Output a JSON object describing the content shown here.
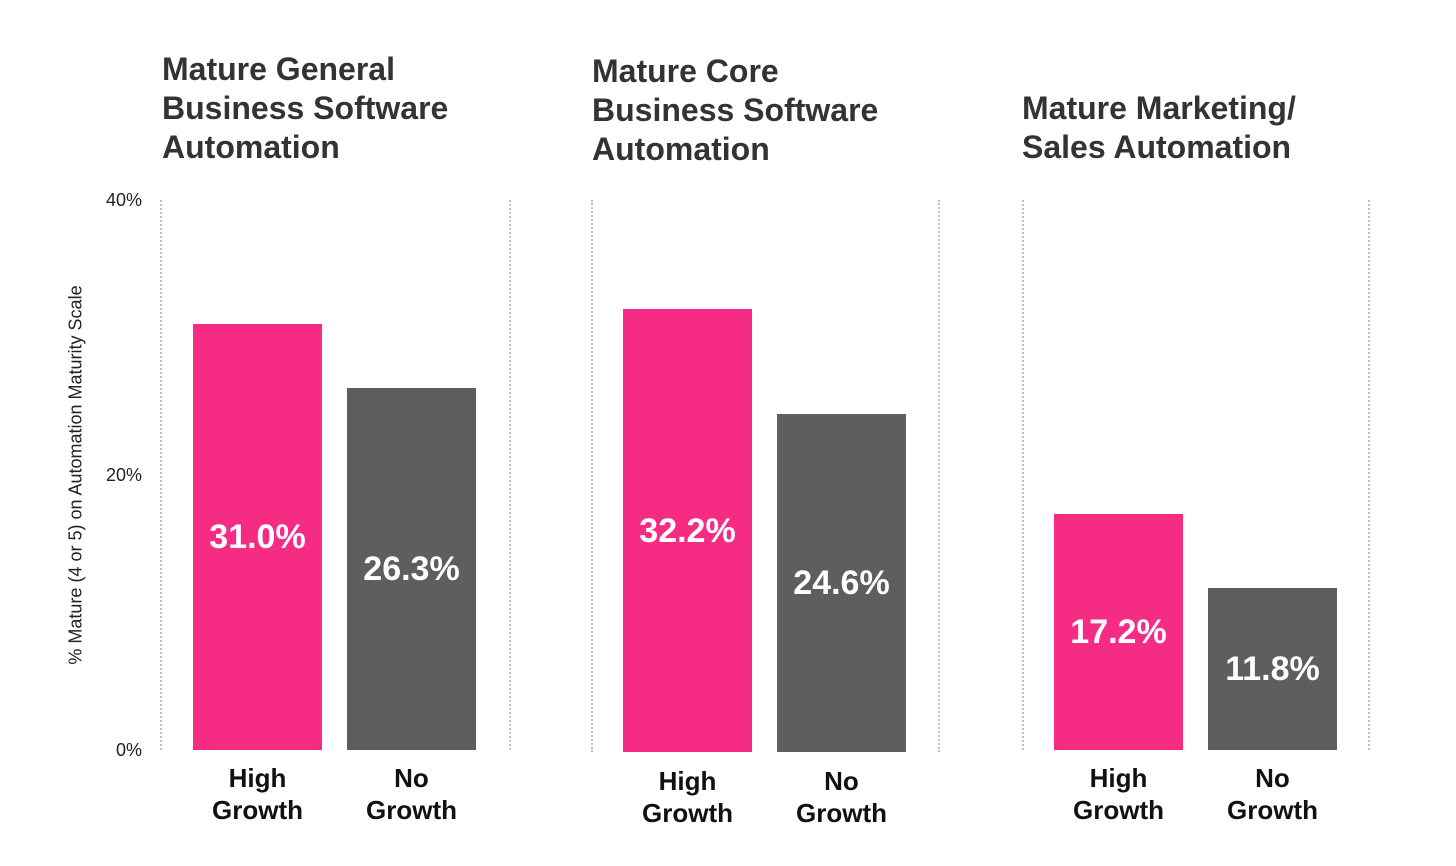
{
  "chart_data": {
    "type": "bar",
    "ylabel": "%  Mature (4 or 5) on Automation Maturity Scale",
    "ylim": [
      0,
      40
    ],
    "ytick_labels": [
      "40%",
      "20%",
      "0%"
    ],
    "grid": false,
    "colors": {
      "high_growth": "#f62b84",
      "no_growth": "#5e5e5e"
    },
    "panels": [
      {
        "title_lines": [
          "Mature General",
          "Business Software",
          "Automation"
        ],
        "bars": [
          {
            "label_lines": [
              "High",
              "Growth"
            ],
            "value": 31.0,
            "value_label": "31.0%"
          },
          {
            "label_lines": [
              "No",
              "Growth"
            ],
            "value": 26.3,
            "value_label": "26.3%"
          }
        ]
      },
      {
        "title_lines": [
          "Mature Core",
          "Business Software",
          "Automation"
        ],
        "bars": [
          {
            "label_lines": [
              "High",
              "Growth"
            ],
            "value": 32.2,
            "value_label": "32.2%"
          },
          {
            "label_lines": [
              "No",
              "Growth"
            ],
            "value": 24.6,
            "value_label": "24.6%"
          }
        ]
      },
      {
        "title_lines": [
          "Mature Marketing/",
          "Sales Automation"
        ],
        "bars": [
          {
            "label_lines": [
              "High",
              "Growth"
            ],
            "value": 17.2,
            "value_label": "17.2%"
          },
          {
            "label_lines": [
              "No",
              "Growth"
            ],
            "value": 11.8,
            "value_label": "11.8%"
          }
        ]
      }
    ]
  }
}
